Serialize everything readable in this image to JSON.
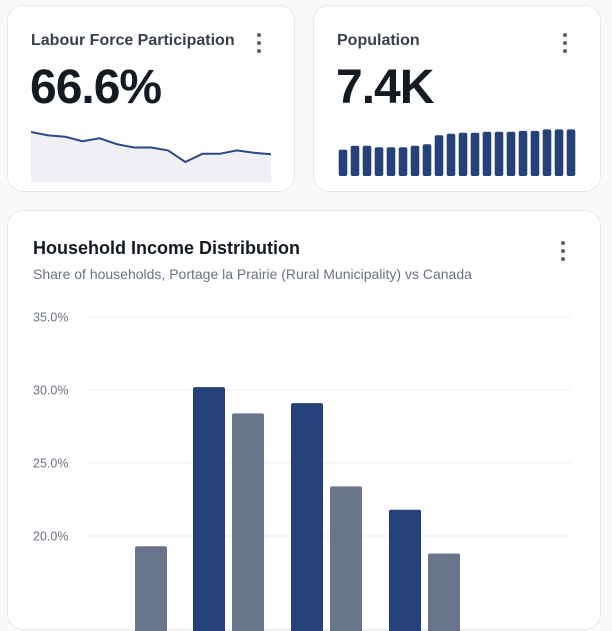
{
  "cards": {
    "labour_force": {
      "title": "Labour Force Participation",
      "value": "66.6%",
      "trend": [
        1.0,
        0.86,
        0.8,
        0.62,
        0.74,
        0.5,
        0.36,
        0.36,
        0.24,
        -0.24,
        0.1,
        0.1,
        0.24,
        0.14,
        0.08
      ]
    },
    "population": {
      "title": "Population",
      "value": "7.4K",
      "bars": [
        0.55,
        0.63,
        0.63,
        0.6,
        0.6,
        0.6,
        0.63,
        0.66,
        0.85,
        0.88,
        0.9,
        0.9,
        0.92,
        0.92,
        0.92,
        0.94,
        0.94,
        0.97,
        0.97,
        0.97
      ]
    },
    "household_income": {
      "title": "Household Income Distribution",
      "subtitle": "Share of households, Portage la Prairie (Rural Municipality) vs Canada"
    }
  },
  "colors": {
    "primary": "#24417a",
    "secondary": "#68758c",
    "spark_line": "#2a4a86",
    "spark_fill": "#eef0f4"
  },
  "chart_data": {
    "type": "bar",
    "title": "Household Income Distribution",
    "subtitle": "Share of households, Portage la Prairie (Rural Municipality) vs Canada",
    "y_ticks": [
      "35.0%",
      "30.0%",
      "25.0%",
      "20.0%"
    ],
    "ylim": [
      17.5,
      35.0
    ],
    "grid": true,
    "series": [
      {
        "values": [
          null,
          30.2,
          29.1,
          21.8
        ]
      },
      {
        "values": [
          19.3,
          28.4,
          23.4,
          18.8
        ]
      }
    ]
  }
}
